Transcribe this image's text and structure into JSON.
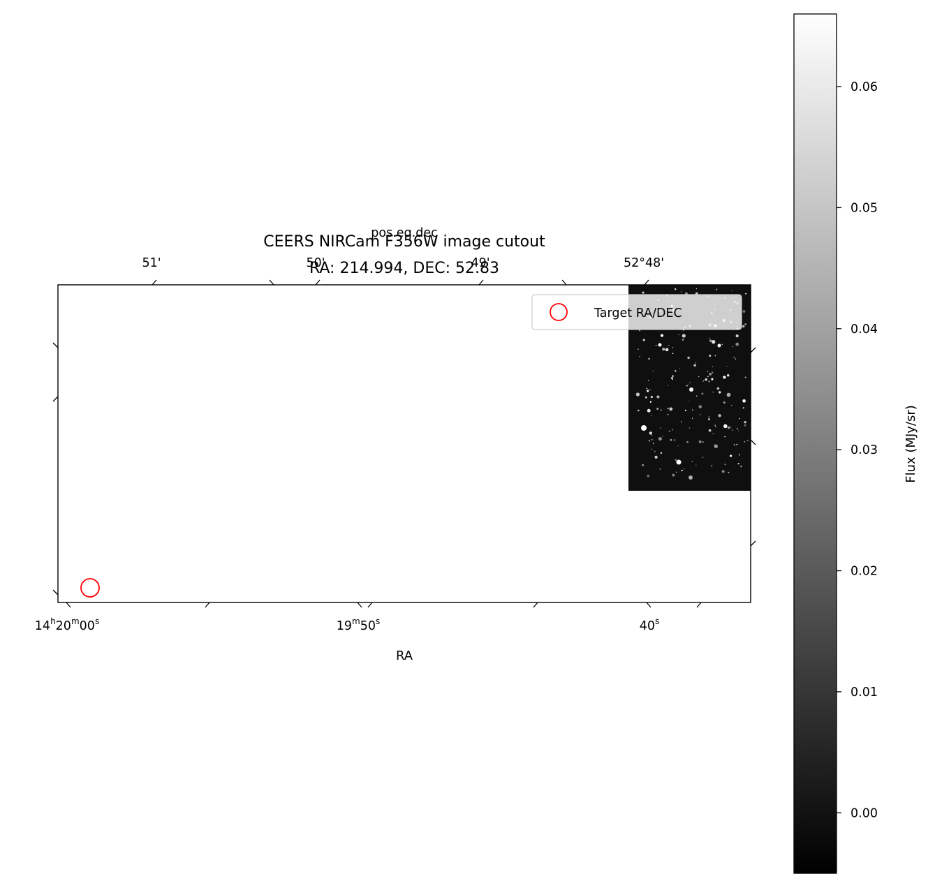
{
  "chart_data": {
    "type": "heatmap",
    "title_lines": [
      "CEERS NIRCam F356W image cutout",
      "RA: 214.994, DEC: 52.83"
    ],
    "top_axis_label": "pos.eq.dec",
    "xlabel": "RA",
    "top_ticks": [
      "51'",
      "50'",
      "49'",
      "52°48'"
    ],
    "bottom_ticks": [
      {
        "main": "14",
        "s1": "h",
        "mid": "20",
        "s2": "m",
        "end": "00",
        "s3": "s"
      },
      {
        "main": "19",
        "s1": "m",
        "mid": "50",
        "s2": "s",
        "end": "",
        "s3": ""
      },
      {
        "main": "40",
        "s1": "s",
        "mid": "",
        "s2": "",
        "end": "",
        "s3": ""
      }
    ],
    "legend": {
      "entries": [
        "Target RA/DEC"
      ],
      "placement": "upper right"
    },
    "marker": {
      "label": "Target RA/DEC",
      "ra": 214.994,
      "dec": 52.83,
      "color": "#ff0000"
    },
    "colorbar": {
      "label": "Flux (MJy/sr)",
      "vmin": -0.005,
      "vmax": 0.066,
      "ticks": [
        0.0,
        0.01,
        0.02,
        0.03,
        0.04,
        0.05,
        0.06
      ],
      "tick_labels": [
        "0.00",
        "0.01",
        "0.02",
        "0.03",
        "0.04",
        "0.05",
        "0.06"
      ],
      "colormap": "gray"
    }
  }
}
